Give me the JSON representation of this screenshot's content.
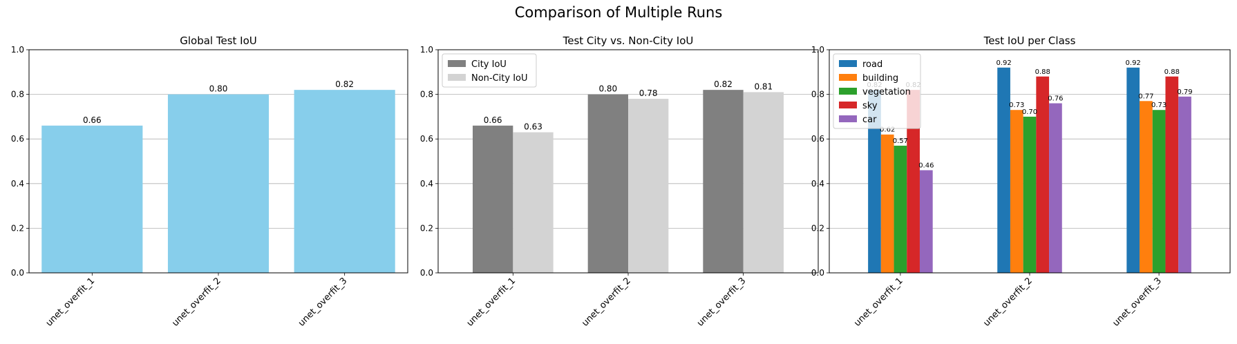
{
  "figure": {
    "suptitle": "Comparison of Multiple Runs"
  },
  "chart_data": [
    {
      "type": "bar",
      "title": "Global Test IoU",
      "xlabel": "",
      "ylabel": "",
      "ylim": [
        0,
        1.0
      ],
      "yticks": [
        "0.0",
        "0.2",
        "0.4",
        "0.6",
        "0.8",
        "1.0"
      ],
      "grid": "y",
      "categories": [
        "unet_overfit_1",
        "unet_overfit_2",
        "unet_overfit_3"
      ],
      "series": [
        {
          "values": [
            0.66,
            0.8,
            0.82
          ],
          "color": "#87ceeb",
          "labels": [
            "0.66",
            "0.80",
            "0.82"
          ]
        }
      ]
    },
    {
      "type": "bar",
      "title": "Test City vs. Non-City IoU",
      "xlabel": "",
      "ylabel": "",
      "ylim": [
        0,
        1.0
      ],
      "yticks": [
        "0.0",
        "0.2",
        "0.4",
        "0.6",
        "0.8",
        "1.0"
      ],
      "grid": "y",
      "legend_position": "top-left",
      "categories": [
        "unet_overfit_1",
        "unet_overfit_2",
        "unet_overfit_3"
      ],
      "series": [
        {
          "name": "City IoU",
          "values": [
            0.66,
            0.8,
            0.82
          ],
          "color": "#808080",
          "labels": [
            "0.66",
            "0.80",
            "0.82"
          ]
        },
        {
          "name": "Non-City IoU",
          "values": [
            0.63,
            0.78,
            0.81
          ],
          "color": "#d3d3d3",
          "labels": [
            "0.63",
            "0.78",
            "0.81"
          ]
        }
      ]
    },
    {
      "type": "bar",
      "title": "Test IoU per Class",
      "xlabel": "",
      "ylabel": "",
      "ylim": [
        0,
        1.0
      ],
      "yticks": [
        "0.0",
        "0.2",
        "0.4",
        "0.6",
        "0.8",
        "1.0"
      ],
      "grid": "y",
      "legend_position": "top-left",
      "categories": [
        "unet_overfit_1",
        "unet_overfit_2",
        "unet_overfit_3"
      ],
      "series": [
        {
          "name": "road",
          "values": [
            0.82,
            0.92,
            0.92
          ],
          "color": "#1f77b4",
          "labels": [
            "0.82",
            "0.92",
            "0.92"
          ]
        },
        {
          "name": "building",
          "values": [
            0.62,
            0.73,
            0.77
          ],
          "color": "#ff7f0e",
          "labels": [
            "0.62",
            "0.73",
            "0.77"
          ]
        },
        {
          "name": "vegetation",
          "values": [
            0.57,
            0.7,
            0.73
          ],
          "color": "#2ca02c",
          "labels": [
            "0.57",
            "0.70",
            "0.73"
          ]
        },
        {
          "name": "sky",
          "values": [
            0.82,
            0.88,
            0.88
          ],
          "color": "#d62728",
          "labels": [
            "0.82",
            "0.88",
            "0.88"
          ]
        },
        {
          "name": "car",
          "values": [
            0.46,
            0.76,
            0.79
          ],
          "color": "#9467bd",
          "labels": [
            "0.46",
            "0.76",
            "0.79"
          ]
        }
      ]
    }
  ]
}
